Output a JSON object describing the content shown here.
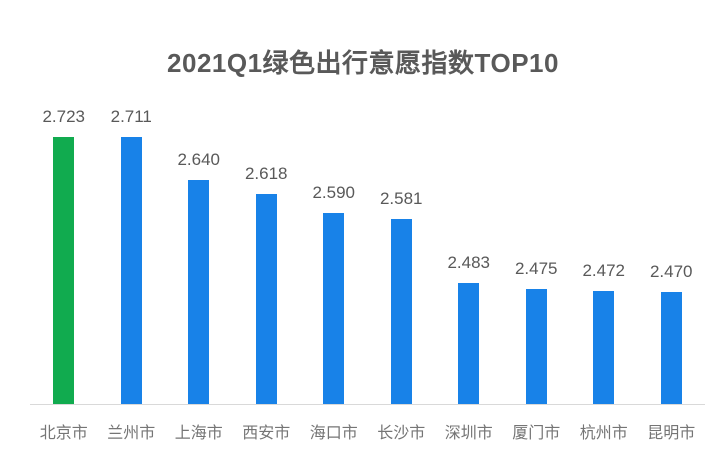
{
  "chart_data": {
    "type": "bar",
    "title": "2021Q1绿色出行意愿指数TOP10",
    "categories": [
      "北京市",
      "兰州市",
      "上海市",
      "西安市",
      "海口市",
      "长沙市",
      "深圳市",
      "厦门市",
      "杭州市",
      "昆明市"
    ],
    "values": [
      2.723,
      2.711,
      2.64,
      2.618,
      2.59,
      2.581,
      2.483,
      2.475,
      2.472,
      2.47
    ],
    "value_labels": [
      "2.723",
      "2.711",
      "2.640",
      "2.618",
      "2.590",
      "2.581",
      "2.483",
      "2.475",
      "2.472",
      "2.470"
    ],
    "xlabel": "",
    "ylabel": "",
    "ylim": [
      2.3,
      2.75
    ],
    "grid": false,
    "legend": false,
    "data_labels_shown": true,
    "highlight_index": 0,
    "colors": {
      "highlight_bar": "#11AB4F",
      "default_bar": "#1882E8",
      "title_text": "#595959",
      "value_label_text": "#595959",
      "category_label_text": "#757575",
      "baseline": "#D9D9D9",
      "background": "#FFFFFF"
    }
  }
}
